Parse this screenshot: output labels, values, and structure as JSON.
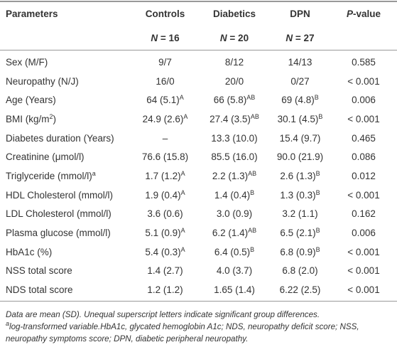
{
  "table": {
    "header": [
      "Parameters",
      "Controls",
      "Diabetics",
      "DPN",
      {
        "italic": "P",
        "text": "-value"
      }
    ],
    "subheader": [
      {
        "italic": "N",
        "text": " = 16"
      },
      {
        "italic": "N",
        "text": " = 20"
      },
      {
        "italic": "N",
        "text": " = 27"
      }
    ],
    "rows": [
      [
        "Sex (M/F)",
        "9/7",
        "8/12",
        "14/13",
        "0.585"
      ],
      [
        "Neuropathy (N/J)",
        "16/0",
        "20/0",
        "0/27",
        "< 0.001"
      ],
      [
        "Age (Years)",
        {
          "text": "64 (5.1)",
          "sup": "A"
        },
        {
          "text": "66 (5.8)",
          "sup": "AB"
        },
        {
          "text": "69 (4.8)",
          "sup": "B"
        },
        "0.006"
      ],
      [
        {
          "text": "BMI (kg/m",
          "sup": "2",
          "after": ")"
        },
        {
          "text": "24.9 (2.6)",
          "sup": "A"
        },
        {
          "text": "27.4 (3.5)",
          "sup": "AB"
        },
        {
          "text": "30.1 (4.5)",
          "sup": "B"
        },
        "< 0.001"
      ],
      [
        "Diabetes duration (Years)",
        "–",
        "13.3 (10.0)",
        "15.4 (9.7)",
        "0.465"
      ],
      [
        "Creatinine (μmol/l)",
        "76.6 (15.8)",
        "85.5 (16.0)",
        "90.0 (21.9)",
        "0.086"
      ],
      [
        {
          "text": "Triglyceride (mmol/l)",
          "sup": "a"
        },
        {
          "text": "1.7 (1.2)",
          "sup": "A"
        },
        {
          "text": "2.2 (1.3)",
          "sup": "AB"
        },
        {
          "text": "2.6 (1.3)",
          "sup": "B"
        },
        "0.012"
      ],
      [
        "HDL Cholesterol (mmol/l)",
        {
          "text": "1.9 (0.4)",
          "sup": "A"
        },
        {
          "text": "1.4 (0.4)",
          "sup": "B"
        },
        {
          "text": "1.3 (0.3)",
          "sup": "B"
        },
        "< 0.001"
      ],
      [
        "LDL Cholesterol (mmol/l)",
        "3.6 (0.6)",
        "3.0 (0.9)",
        "3.2 (1.1)",
        "0.162"
      ],
      [
        "Plasma glucose (mmol/l)",
        {
          "text": "5.1 (0.9)",
          "sup": "A"
        },
        {
          "text": "6.2 (1.4)",
          "sup": "AB"
        },
        {
          "text": "6.5 (2.1)",
          "sup": "B"
        },
        "0.006"
      ],
      [
        "HbA1c (%)",
        {
          "text": "5.4 (0.3)",
          "sup": "A"
        },
        {
          "text": "6.4 (0.5)",
          "sup": "B"
        },
        {
          "text": "6.8 (0.9)",
          "sup": "B"
        },
        "< 0.001"
      ],
      [
        "NSS total score",
        "1.4 (2.7)",
        "4.0 (3.7)",
        "6.8 (2.0)",
        "< 0.001"
      ],
      [
        "NDS total score",
        "1.2 (1.2)",
        "1.65 (1.4)",
        "6.22 (2.5)",
        "< 0.001"
      ]
    ]
  },
  "footnotes": [
    {
      "text": "Data are mean (SD). Unequal superscript letters indicate significant group differences."
    },
    {
      "sup": "a",
      "text": "log-transformed variable.HbA1c, glycated hemoglobin A1c; NDS, neuropathy deficit score; NSS, neuropathy symptoms score; DPN, diabetic peripheral neuropathy."
    }
  ]
}
